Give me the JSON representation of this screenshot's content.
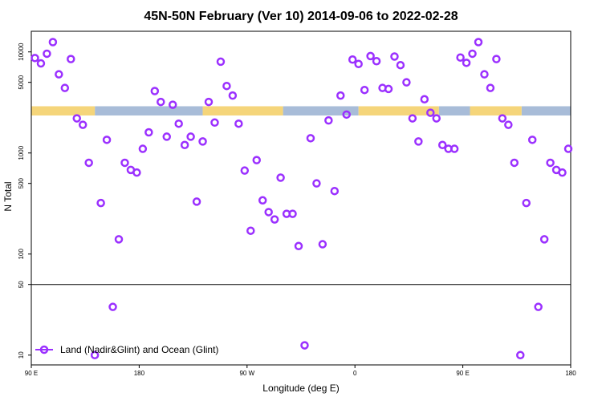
{
  "chart_data": {
    "type": "scatter",
    "title": "45N-50N February (Ver 10)   2014-09-06 to 2022-02-28",
    "xlabel": "Longitude (deg E)",
    "ylabel": "N Total",
    "x_tick_labels": [
      "90 E",
      "180",
      "90 W",
      "0",
      "90 E",
      "180"
    ],
    "x_ticks": [
      90,
      180,
      270,
      360,
      450,
      540
    ],
    "xlim": [
      90,
      540
    ],
    "yscale": "log",
    "y_tick_labels": [
      "10",
      "50",
      "100",
      "500",
      "1000",
      "5000",
      "10000"
    ],
    "y_ticks": [
      10,
      50,
      100,
      500,
      1000,
      5000,
      10000
    ],
    "ylim": [
      8,
      16000
    ],
    "split_line_y": 50,
    "legend": {
      "position": "bottom-left",
      "entries": [
        "Land (Nadir&Glint) and Ocean (Glint)"
      ]
    },
    "series": [
      {
        "name": "Land (Nadir&Glint) and Ocean (Glint)",
        "color": "#9b30ff",
        "x": [
          93,
          98,
          103,
          108,
          113,
          118,
          123,
          128,
          133,
          138,
          143,
          148,
          153,
          158,
          163,
          168,
          173,
          178,
          183,
          188,
          193,
          198,
          203,
          208,
          213,
          218,
          223,
          228,
          233,
          238,
          243,
          248,
          253,
          258,
          263,
          268,
          273,
          278,
          283,
          288,
          293,
          298,
          303,
          308,
          313,
          318,
          323,
          328,
          333,
          338,
          343,
          348,
          353,
          358,
          363,
          368,
          373,
          378,
          383,
          388,
          393,
          398,
          403,
          408,
          413,
          418,
          423,
          428,
          433,
          438,
          443,
          448,
          453,
          458,
          463,
          468,
          473,
          478,
          483,
          488,
          493,
          498,
          503,
          508,
          513,
          518,
          523,
          528,
          533,
          538
        ],
        "y": [
          8700,
          7700,
          9600,
          12500,
          6000,
          4400,
          8500,
          2200,
          1900,
          800,
          10,
          320,
          1350,
          30,
          140,
          800,
          680,
          640,
          1100,
          1600,
          4100,
          3200,
          1450,
          3000,
          1950,
          1200,
          1450,
          330,
          1300,
          3200,
          2000,
          8000,
          4600,
          3700,
          1950,
          670,
          170,
          850,
          340,
          260,
          220,
          570,
          250,
          250,
          120,
          12.5,
          1400,
          500,
          125,
          2100,
          420,
          3700,
          2400,
          8400,
          7600,
          4200,
          9100,
          8100,
          4400,
          4300,
          9000,
          7400,
          5000,
          2200,
          1300,
          3400,
          2500,
          2200,
          1200,
          1100,
          1100,
          8800,
          7800,
          9600,
          12500,
          6000,
          4400,
          8500,
          2200,
          1900,
          800,
          10,
          320,
          1350,
          30,
          140,
          800,
          680,
          640,
          1100
        ]
      }
    ],
    "land_ocean_band": {
      "y_range": [
        2350,
        2900
      ],
      "land_color": "#f5d57a",
      "ocean_color": "#a8bcd8",
      "land_segments": [
        [
          90,
          143
        ],
        [
          233,
          300
        ],
        [
          363,
          430
        ],
        [
          456,
          499
        ]
      ],
      "ocean_segments": [
        [
          143,
          233
        ],
        [
          300,
          363
        ],
        [
          430,
          456
        ],
        [
          499,
          540
        ]
      ]
    }
  }
}
